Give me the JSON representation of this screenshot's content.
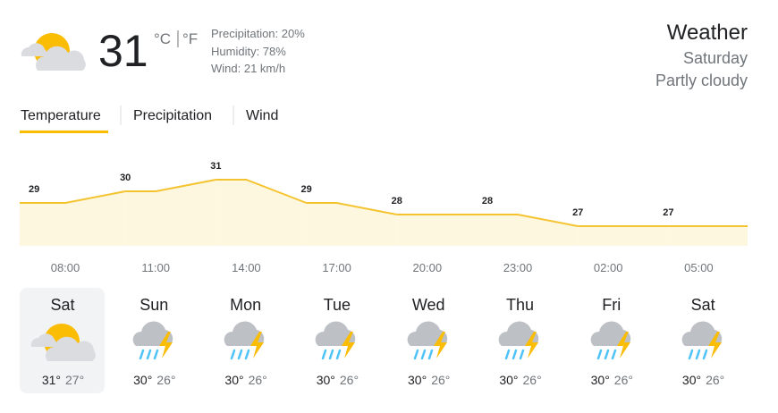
{
  "header": {
    "temperature": "31",
    "units": [
      "°C",
      "°F"
    ],
    "details": [
      "Precipitation: 20%",
      "Humidity: 78%",
      "Wind: 21 km/h"
    ],
    "title": "Weather",
    "day": "Saturday",
    "condition": "Partly cloudy"
  },
  "tabs": [
    "Temperature",
    "Precipitation",
    "Wind"
  ],
  "chart_data": {
    "type": "area",
    "categories": [
      "08:00",
      "11:00",
      "14:00",
      "17:00",
      "20:00",
      "23:00",
      "02:00",
      "05:00"
    ],
    "values": [
      29,
      30,
      31,
      29,
      28,
      28,
      27,
      27
    ],
    "color": "#f4c430"
  },
  "days": [
    {
      "name": "Sat",
      "high": "31°",
      "low": "27°"
    },
    {
      "name": "Sun",
      "high": "30°",
      "low": "26°"
    },
    {
      "name": "Mon",
      "high": "30°",
      "low": "26°"
    },
    {
      "name": "Tue",
      "high": "30°",
      "low": "26°"
    },
    {
      "name": "Wed",
      "high": "30°",
      "low": "26°"
    },
    {
      "name": "Thu",
      "high": "30°",
      "low": "26°"
    },
    {
      "name": "Fri",
      "high": "30°",
      "low": "26°"
    },
    {
      "name": "Sat",
      "high": "30°",
      "low": "26°"
    }
  ]
}
